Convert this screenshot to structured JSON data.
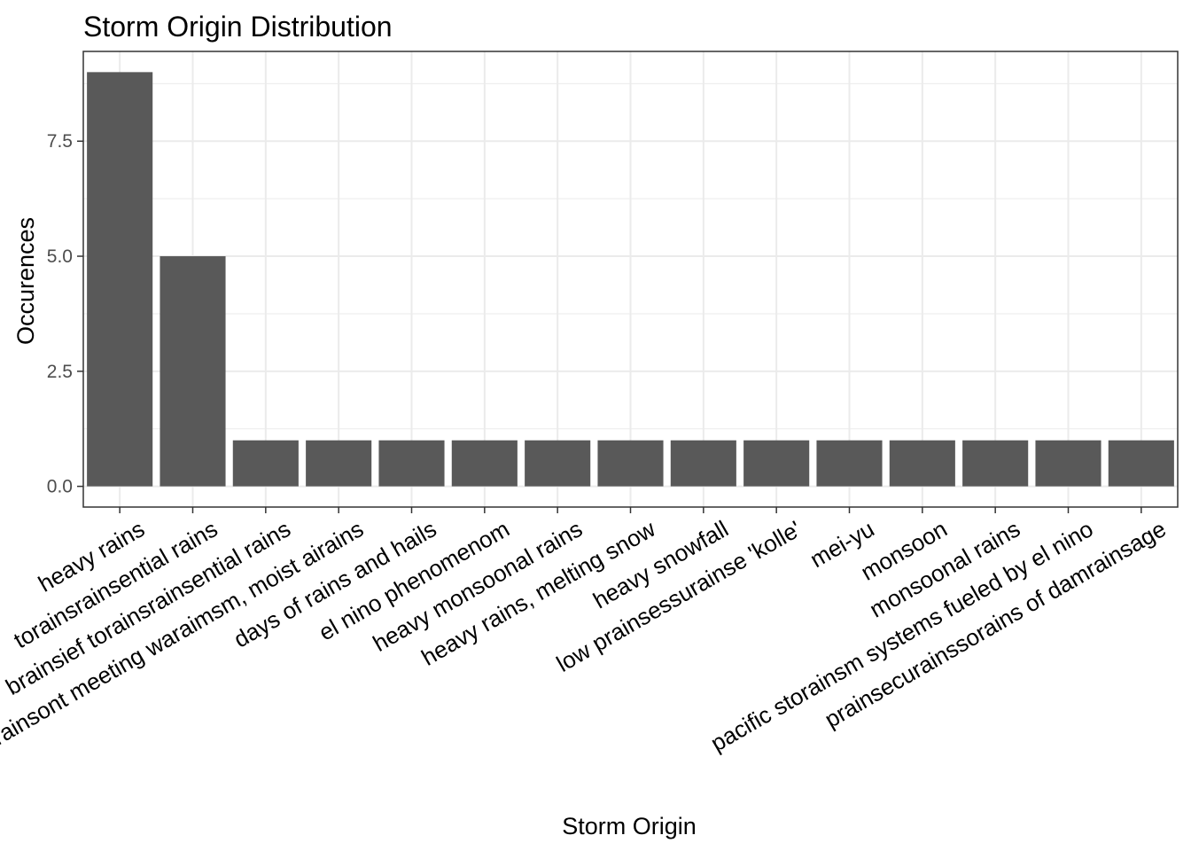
{
  "chart_data": {
    "type": "bar",
    "title": "Storm Origin Distribution",
    "xlabel": "Storm Origin",
    "ylabel": "Occurences",
    "categories": [
      "heavy rains",
      "torainsrainsential rains",
      "brainsief torainsrainsential rains",
      "cold frainsont meeting waraimsm, moist airains",
      "days of rains and hails",
      "el nino phenomenom",
      "heavy monsoonal rains",
      "heavy rains, melting snow",
      "heavy snowfall",
      "low prainsessurainse 'kolle'",
      "mei-yu",
      "monsoon",
      "monsoonal rains",
      "pacific storainsm systems fueled by el nino",
      "prainsecurainssorains of damrainsage"
    ],
    "values": [
      9,
      5,
      1,
      1,
      1,
      1,
      1,
      1,
      1,
      1,
      1,
      1,
      1,
      1,
      1
    ],
    "ylim": [
      -0.45,
      9.45
    ],
    "yticks": [
      0.0,
      2.5,
      5.0,
      7.5
    ],
    "ytick_labels": [
      "0.0",
      "2.5",
      "5.0",
      "7.5"
    ],
    "grid": true,
    "colors": {
      "bar": "#595959",
      "grid": "#ebebeb",
      "panel_border": "#333333",
      "axis_text": "#4d4d4d"
    }
  }
}
